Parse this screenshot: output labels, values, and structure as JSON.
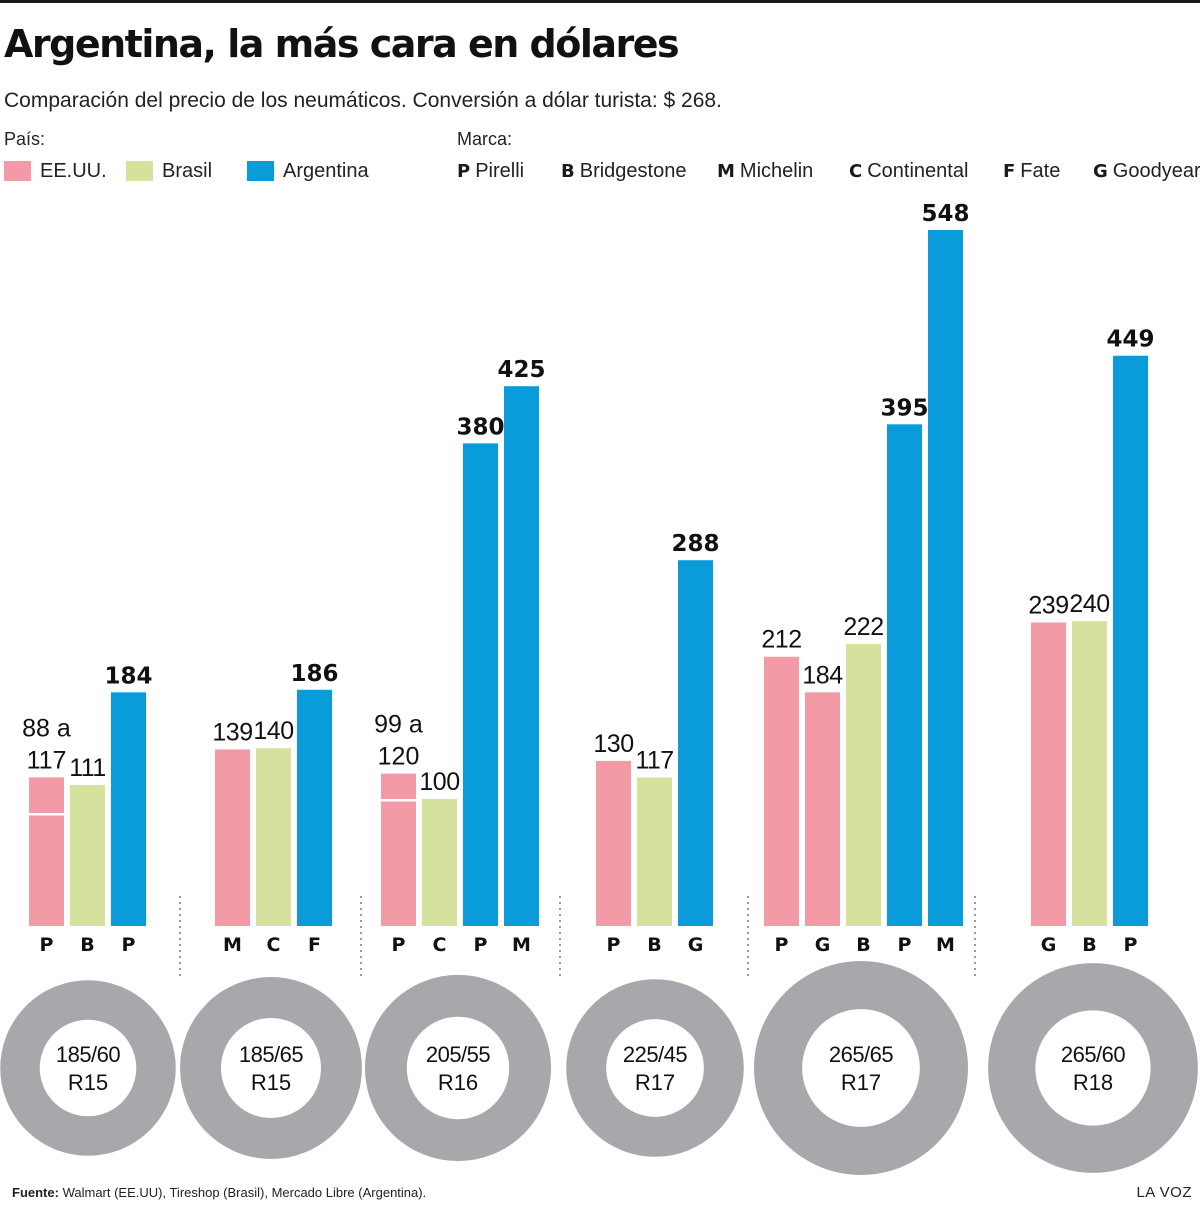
{
  "title": "Argentina, la más cara en dólares",
  "subtitle": "Comparación del precio de los neumáticos. Conversión a dólar turista: $ 268.",
  "legend": {
    "country_heading": "País:",
    "brand_heading": "Marca:",
    "countries": [
      {
        "key": "us",
        "label": "EE.UU.",
        "color": "#f29aa5"
      },
      {
        "key": "br",
        "label": "Brasil",
        "color": "#d4e29e"
      },
      {
        "key": "ar",
        "label": "Argentina",
        "color": "#0a9bdb"
      }
    ],
    "brands": [
      {
        "code": "P",
        "label": "Pirelli"
      },
      {
        "code": "B",
        "label": "Bridgestone"
      },
      {
        "code": "M",
        "label": "Michelin"
      },
      {
        "code": "C",
        "label": "Continental"
      },
      {
        "code": "F",
        "label": "Fate"
      },
      {
        "code": "G",
        "label": "Goodyear"
      }
    ]
  },
  "chart_data": {
    "type": "bar",
    "title": "Argentina, la más cara en dólares",
    "subtitle": "Comparación del precio de los neumáticos. Conversión a dólar turista: $ 268.",
    "xlabel": "",
    "ylabel": "",
    "ylim": [
      0,
      548
    ],
    "unit": "USD",
    "grid": false,
    "legend_position": "top-left",
    "groups": [
      {
        "size_line1": "185/60",
        "size_line2": "R15",
        "tire_scale": 0.82,
        "bars": [
          {
            "country": "us",
            "brand": "P",
            "value": 117,
            "range_low": 88,
            "label_line1": "88 a",
            "label_line2": "117",
            "bold": false
          },
          {
            "country": "br",
            "brand": "B",
            "value": 111,
            "label_line1": "111",
            "bold": false
          },
          {
            "country": "ar",
            "brand": "P",
            "value": 184,
            "label_line1": "184",
            "bold": true
          }
        ]
      },
      {
        "size_line1": "185/65",
        "size_line2": "R15",
        "tire_scale": 0.85,
        "bars": [
          {
            "country": "us",
            "brand": "M",
            "value": 139,
            "label_line1": "139",
            "bold": false
          },
          {
            "country": "br",
            "brand": "C",
            "value": 140,
            "label_line1": "140",
            "bold": false
          },
          {
            "country": "ar",
            "brand": "F",
            "value": 186,
            "label_line1": "186",
            "bold": true
          }
        ]
      },
      {
        "size_line1": "205/55",
        "size_line2": "R16",
        "tire_scale": 0.87,
        "bars": [
          {
            "country": "us",
            "brand": "P",
            "value": 120,
            "range_low": 99,
            "label_line1": "99 a",
            "label_line2": "120",
            "bold": false
          },
          {
            "country": "br",
            "brand": "C",
            "value": 100,
            "label_line1": "100",
            "bold": false
          },
          {
            "country": "ar",
            "brand": "P",
            "value": 380,
            "label_line1": "380",
            "bold": true
          },
          {
            "country": "ar",
            "brand": "M",
            "value": 425,
            "label_line1": "425",
            "bold": true
          }
        ]
      },
      {
        "size_line1": "225/45",
        "size_line2": "R17",
        "tire_scale": 0.83,
        "bars": [
          {
            "country": "us",
            "brand": "P",
            "value": 130,
            "label_line1": "130",
            "bold": false
          },
          {
            "country": "br",
            "brand": "B",
            "value": 117,
            "label_line1": "117",
            "bold": false
          },
          {
            "country": "ar",
            "brand": "G",
            "value": 288,
            "label_line1": "288",
            "bold": true
          }
        ]
      },
      {
        "size_line1": "265/65",
        "size_line2": "R17",
        "tire_scale": 1.0,
        "bars": [
          {
            "country": "us",
            "brand": "P",
            "value": 212,
            "label_line1": "212",
            "bold": false
          },
          {
            "country": "us",
            "brand": "G",
            "value": 184,
            "label_line1": "184",
            "bold": false
          },
          {
            "country": "br",
            "brand": "B",
            "value": 222,
            "label_line1": "222",
            "bold": false
          },
          {
            "country": "ar",
            "brand": "P",
            "value": 395,
            "label_line1": "395",
            "bold": true
          },
          {
            "country": "ar",
            "brand": "M",
            "value": 548,
            "label_line1": "548",
            "bold": true
          }
        ]
      },
      {
        "size_line1": "265/60",
        "size_line2": "R18",
        "tire_scale": 0.98,
        "bars": [
          {
            "country": "us",
            "brand": "G",
            "value": 239,
            "label_line1": "239",
            "bold": false
          },
          {
            "country": "br",
            "brand": "B",
            "value": 240,
            "label_line1": "240",
            "bold": false
          },
          {
            "country": "ar",
            "brand": "P",
            "value": 449,
            "label_line1": "449",
            "bold": true
          }
        ]
      }
    ]
  },
  "footer": {
    "source_label": "Fuente:",
    "source_text": "Walmart (EE.UU), Tireshop (Brasil), Mercado Libre (Argentina).",
    "credit": "LA VOZ"
  }
}
